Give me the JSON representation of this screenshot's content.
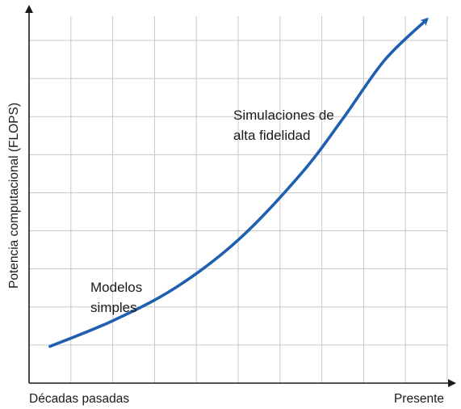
{
  "chart_data": {
    "type": "line",
    "title": "",
    "xlabel": "",
    "ylabel": "Potencia computacional (FLOPS)",
    "x_tick_labels": {
      "start": "Décadas pasadas",
      "end": "Presente"
    },
    "xlim": [
      0,
      10
    ],
    "ylim": [
      0,
      10
    ],
    "grid": true,
    "grid_divisions": {
      "x": 10,
      "y": 9
    },
    "series": [
      {
        "color": "#1f5fb0",
        "x": [
          0.5,
          2,
          3.5,
          5,
          6.5,
          7.5,
          8.5,
          9.5
        ],
        "y": [
          1.0,
          1.7,
          2.6,
          3.9,
          5.7,
          7.2,
          8.8,
          9.9
        ],
        "arrow_end": true
      }
    ],
    "annotations": [
      {
        "lines": [
          "Modelos",
          "simples"
        ]
      },
      {
        "lines": [
          "Simulaciones de",
          "alta fidelidad"
        ]
      }
    ]
  }
}
